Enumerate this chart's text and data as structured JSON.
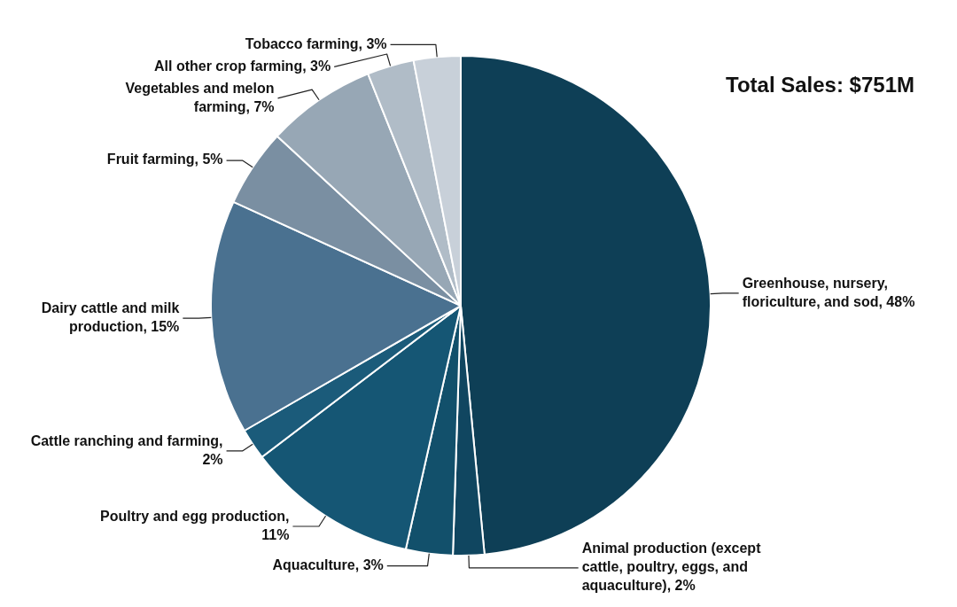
{
  "chart_data": {
    "type": "pie",
    "categories": [
      "Greenhouse, nursery, floriculture, and sod, 48%",
      "Animal production (except cattle, poultry, eggs, and aquaculture), 2%",
      "Aquaculture, 3%",
      "Poultry and egg production, 11%",
      "Cattle ranching and farming, 2%",
      "Dairy cattle and milk production, 15%",
      "Fruit farming, 5%",
      "Vegetables and melon farming, 7%",
      "All other crop farming, 3%",
      "Tobacco farming, 3%"
    ],
    "values": [
      48,
      2,
      3,
      11,
      2,
      15,
      5,
      7,
      3,
      3
    ],
    "colors": [
      "#0e3f56",
      "#104660",
      "#12506b",
      "#155674",
      "#1b5b7a",
      "#4a7190",
      "#7a8fa2",
      "#97a7b5",
      "#b0bcc7",
      "#c8d0d9"
    ],
    "annotations": [
      "Total Sales: $751M"
    ]
  }
}
